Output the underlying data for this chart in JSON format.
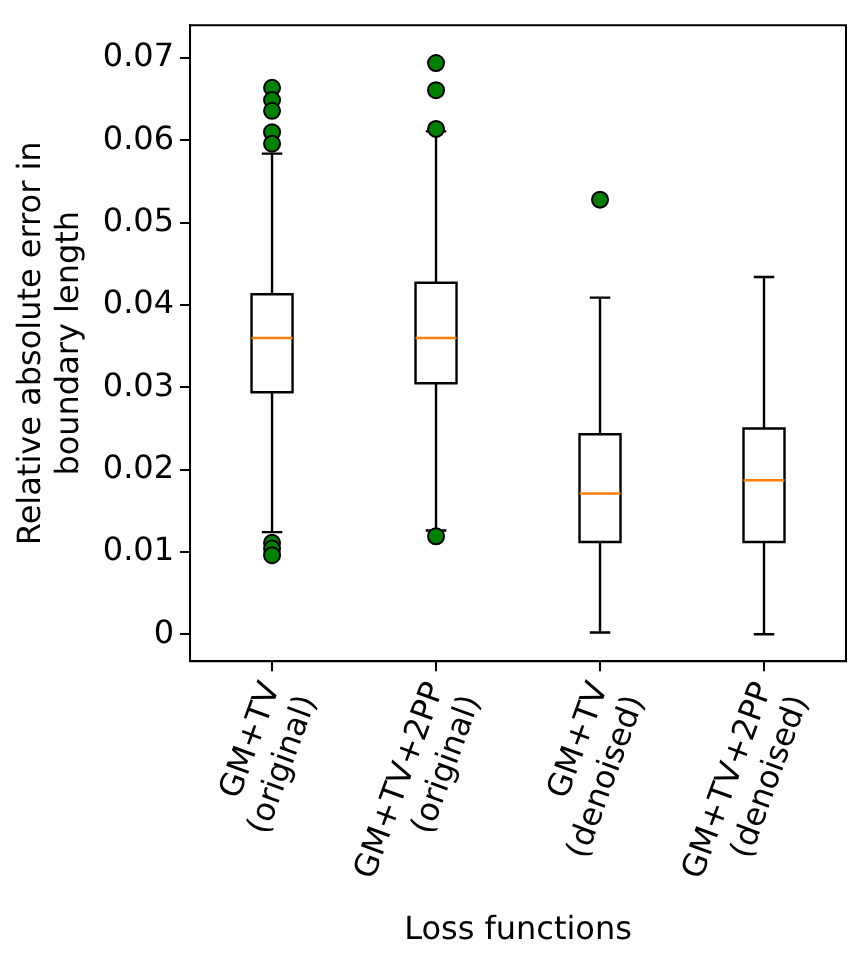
{
  "chart_data": {
    "type": "box",
    "xlabel": "Loss functions",
    "ylabel": "Relative absolute error in\nboundary length",
    "categories": [
      "GM+TV\n(original)",
      "GM+TV+2PP\n(original)",
      "GM+TV\n(denoised)",
      "GM+TV+2PP\n(denoised)"
    ],
    "boxes": [
      {
        "low": 0.0124,
        "q1": 0.0294,
        "median": 0.036,
        "q3": 0.0413,
        "high": 0.0584,
        "outliers": [
          0.0664,
          0.0649,
          0.0636,
          0.061,
          0.0596,
          0.0111,
          0.0104,
          0.0096
        ]
      },
      {
        "low": 0.0126,
        "q1": 0.0305,
        "median": 0.036,
        "q3": 0.0427,
        "high": 0.0611,
        "outliers": [
          0.0694,
          0.0661,
          0.0614,
          0.0119
        ]
      },
      {
        "low": 0.0002,
        "q1": 0.0112,
        "median": 0.0171,
        "q3": 0.0243,
        "high": 0.0409,
        "outliers": [
          0.0528
        ]
      },
      {
        "low": 0,
        "q1": 0.0112,
        "median": 0.0187,
        "q3": 0.025,
        "high": 0.0434
      }
    ],
    "ylim": [
      -0.0033,
      0.074
    ],
    "yticks": [
      0,
      0.01,
      0.02,
      0.03,
      0.04,
      0.05,
      0.06,
      0.07
    ],
    "grid": false,
    "legend": false
  }
}
